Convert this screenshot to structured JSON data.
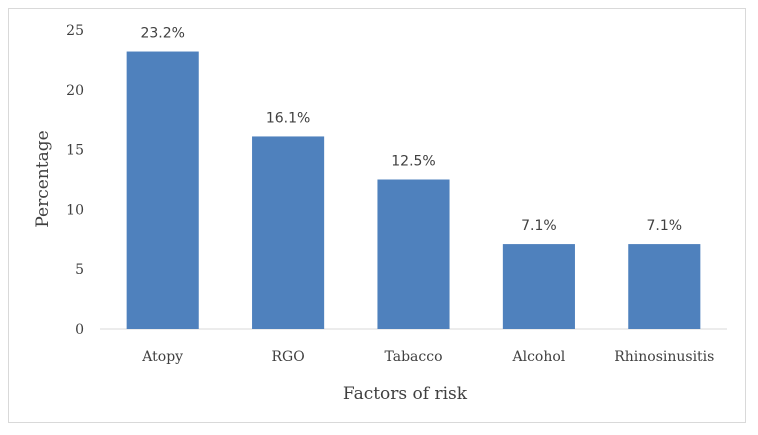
{
  "chart_data": {
    "type": "bar",
    "title": "",
    "xlabel": "Factors of risk",
    "ylabel": "Percentage",
    "categories": [
      "Atopy",
      "RGO",
      "Tabacco",
      "Alcohol",
      "Rhinosinusitis"
    ],
    "values": [
      23.2,
      16.1,
      12.5,
      7.1,
      7.1
    ],
    "data_labels": [
      "23.2%",
      "16.1%",
      "12.5%",
      "7.1%",
      "7.1%"
    ],
    "ylim": [
      0,
      25
    ],
    "yticks": [
      0,
      5,
      10,
      15,
      20,
      25
    ],
    "grid": false,
    "legend": "none",
    "bar_color": "#4f81bd"
  }
}
